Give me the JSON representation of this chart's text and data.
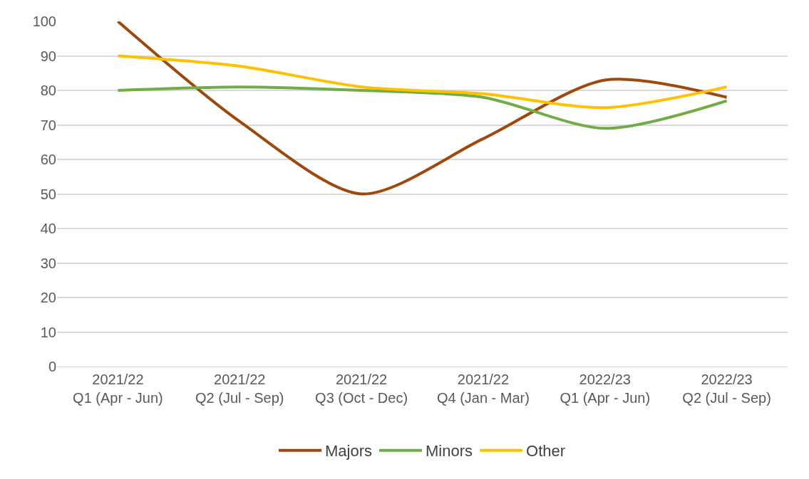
{
  "chart_data": {
    "type": "line",
    "categories": [
      "2021/22\nQ1 (Apr - Jun)",
      "2021/22\nQ2 (Jul - Sep)",
      "2021/22\nQ3 (Oct - Dec)",
      "2021/22\nQ4 (Jan - Mar)",
      "2022/23\nQ1 (Apr - Jun)",
      "2022/23\nQ2 (Jul - Sep)"
    ],
    "series": [
      {
        "name": "Majors",
        "color": "#9e480e",
        "values": [
          100,
          71,
          50,
          66,
          83,
          78
        ]
      },
      {
        "name": "Minors",
        "color": "#70ad47",
        "values": [
          80,
          81,
          80,
          78,
          69,
          77
        ]
      },
      {
        "name": "Other",
        "color": "#ffc000",
        "values": [
          90,
          87,
          81,
          79,
          75,
          81
        ]
      }
    ],
    "ylim": [
      0,
      100
    ],
    "yticks": [
      0,
      10,
      20,
      30,
      40,
      50,
      60,
      70,
      80,
      90,
      100
    ],
    "grid": "y",
    "legend": "bottom",
    "marker": "none",
    "line_style": "solid"
  }
}
